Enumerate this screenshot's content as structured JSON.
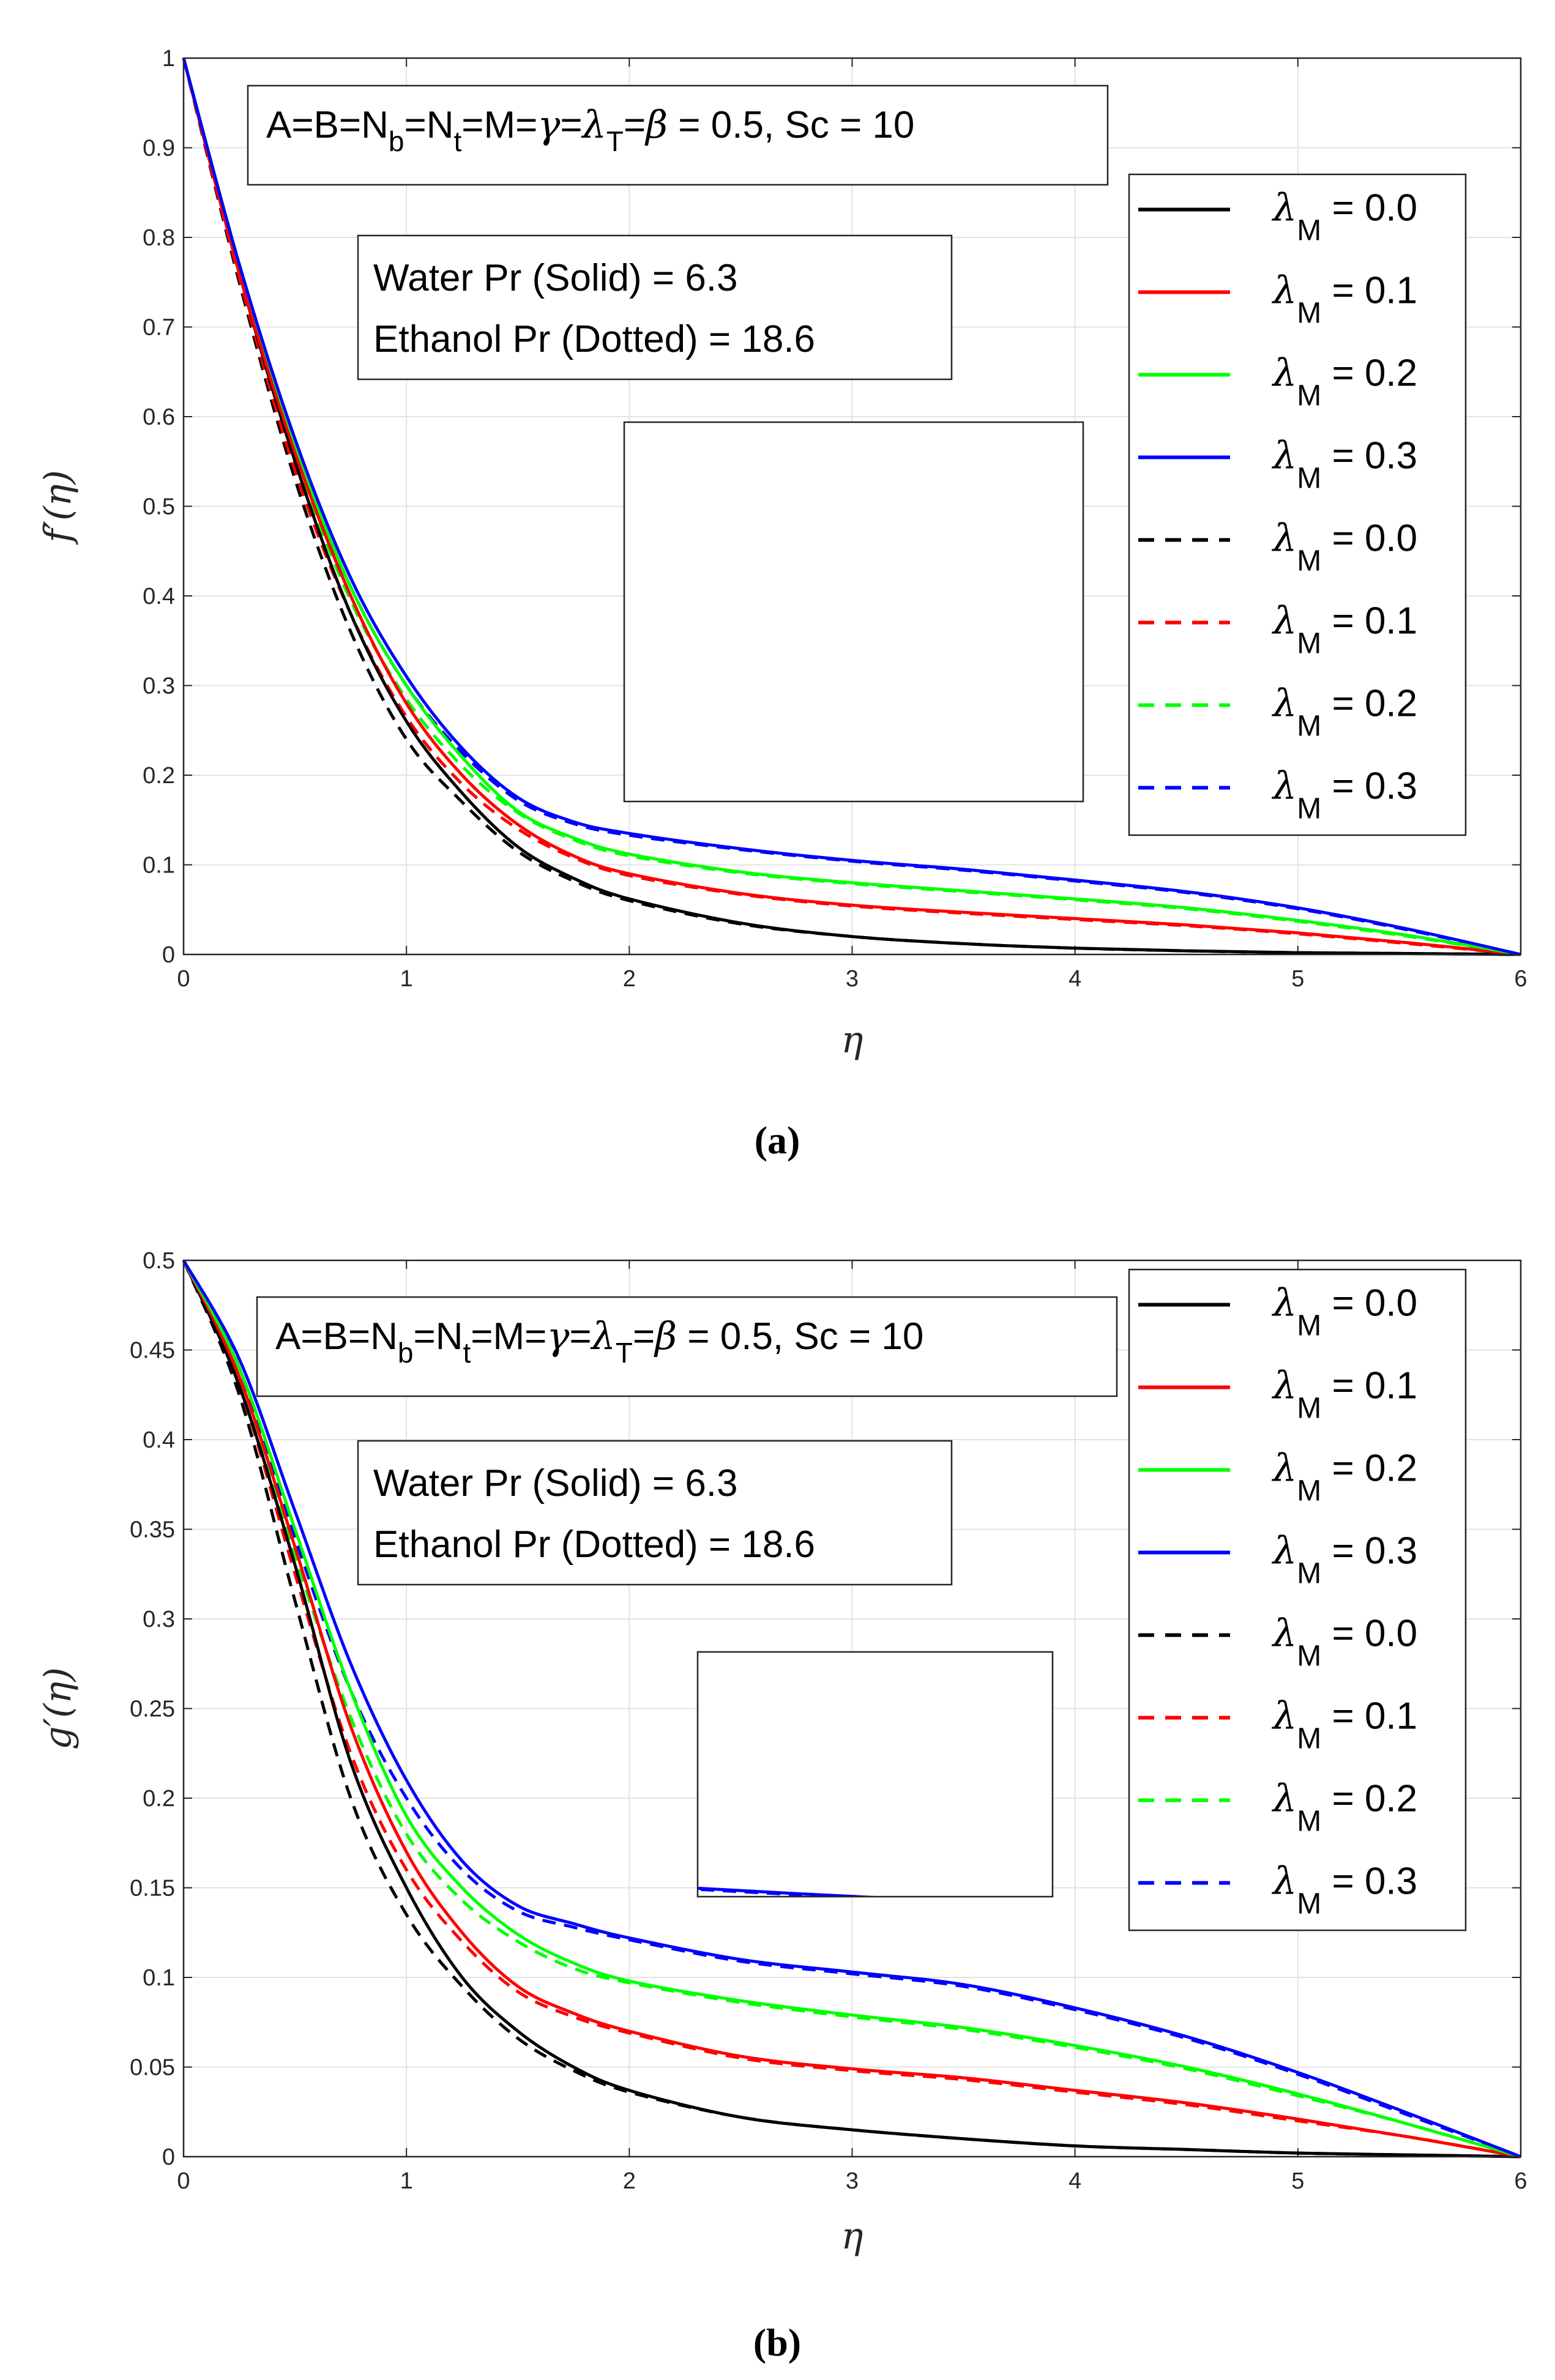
{
  "chart_data": [
    {
      "type": "line",
      "panel_label": "(a)",
      "xlabel": "η",
      "ylabel": "f′(η)",
      "xlim": [
        0,
        6
      ],
      "ylim": [
        0,
        1
      ],
      "xticks": [
        "0",
        "1",
        "2",
        "3",
        "4",
        "5",
        "6"
      ],
      "yticks": [
        "0",
        "0.1",
        "0.2",
        "0.3",
        "0.4",
        "0.5",
        "0.6",
        "0.7",
        "0.8",
        "0.9",
        "1"
      ],
      "grid": true,
      "param_box": {
        "prefix": "A=B=N",
        "sub1": "b",
        "mid1": "=N",
        "sub2": "t",
        "mid2": "=M=",
        "gamma": "γ",
        "eq1": "=",
        "lam": "λ",
        "sub3": "T",
        "eq2": "=",
        "beta": "β",
        "suffix": " = 0.5, Sc = 10"
      },
      "pr_box": {
        "line1": "Water Pr (Solid) = 6.3",
        "line2": "Ethanol Pr (Dotted) = 18.6"
      },
      "legend": [
        {
          "symbol": "λ",
          "sub": "M",
          "text": " = 0.0",
          "color": "#000000",
          "dash": false
        },
        {
          "symbol": "λ",
          "sub": "M",
          "text": " = 0.1",
          "color": "#ff0000",
          "dash": false
        },
        {
          "symbol": "λ",
          "sub": "M",
          "text": " = 0.2",
          "color": "#00ff00",
          "dash": false
        },
        {
          "symbol": "λ",
          "sub": "M",
          "text": " = 0.3",
          "color": "#0000ff",
          "dash": false
        },
        {
          "symbol": "λ",
          "sub": "M",
          "text": " = 0.0",
          "color": "#000000",
          "dash": true
        },
        {
          "symbol": "λ",
          "sub": "M",
          "text": " = 0.1",
          "color": "#ff0000",
          "dash": true
        },
        {
          "symbol": "λ",
          "sub": "M",
          "text": " = 0.2",
          "color": "#00ff00",
          "dash": true
        },
        {
          "symbol": "λ",
          "sub": "M",
          "text": " = 0.3",
          "color": "#0000ff",
          "dash": true
        }
      ],
      "x": [
        0,
        0.25,
        0.5,
        0.75,
        1,
        1.25,
        1.5,
        1.75,
        2,
        2.5,
        3,
        3.5,
        4,
        4.5,
        5,
        5.5,
        6
      ],
      "series": [
        {
          "name": "λM = 0.0 (Water)",
          "color": "#000000",
          "dash": false,
          "values": [
            1,
            0.76,
            0.55,
            0.38,
            0.26,
            0.18,
            0.12,
            0.085,
            0.062,
            0.035,
            0.02,
            0.012,
            0.007,
            0.004,
            0.002,
            0.001,
            0
          ]
        },
        {
          "name": "λM = 0.1 (Water)",
          "color": "#ff0000",
          "dash": false,
          "values": [
            1,
            0.76,
            0.56,
            0.4,
            0.28,
            0.2,
            0.145,
            0.11,
            0.09,
            0.068,
            0.055,
            0.047,
            0.04,
            0.033,
            0.024,
            0.013,
            0
          ]
        },
        {
          "name": "λM = 0.2 (Water)",
          "color": "#00ff00",
          "dash": false,
          "values": [
            1,
            0.77,
            0.57,
            0.41,
            0.3,
            0.22,
            0.16,
            0.13,
            0.112,
            0.092,
            0.08,
            0.071,
            0.062,
            0.052,
            0.038,
            0.021,
            0
          ]
        },
        {
          "name": "λM = 0.3 (Water)",
          "color": "#0000ff",
          "dash": false,
          "values": [
            1,
            0.77,
            0.575,
            0.42,
            0.31,
            0.23,
            0.175,
            0.148,
            0.135,
            0.118,
            0.105,
            0.095,
            0.083,
            0.07,
            0.052,
            0.028,
            0
          ]
        },
        {
          "name": "λM = 0.0 (Ethanol)",
          "color": "#000000",
          "dash": true,
          "values": [
            1,
            0.75,
            0.53,
            0.36,
            0.24,
            0.17,
            0.115,
            0.082,
            0.06,
            0.034,
            0.02,
            0.012,
            0.007,
            0.004,
            0.002,
            0.001,
            0
          ]
        },
        {
          "name": "λM = 0.1 (Ethanol)",
          "color": "#ff0000",
          "dash": true,
          "values": [
            1,
            0.755,
            0.54,
            0.38,
            0.265,
            0.19,
            0.14,
            0.108,
            0.088,
            0.067,
            0.054,
            0.046,
            0.039,
            0.032,
            0.023,
            0.012,
            0
          ]
        },
        {
          "name": "λM = 0.2 (Ethanol)",
          "color": "#00ff00",
          "dash": true,
          "values": [
            1,
            0.76,
            0.555,
            0.395,
            0.285,
            0.21,
            0.158,
            0.128,
            0.11,
            0.091,
            0.079,
            0.07,
            0.061,
            0.051,
            0.037,
            0.02,
            0
          ]
        },
        {
          "name": "λM = 0.3 (Ethanol)",
          "color": "#0000ff",
          "dash": true,
          "values": [
            1,
            0.765,
            0.565,
            0.41,
            0.3,
            0.225,
            0.172,
            0.146,
            0.133,
            0.117,
            0.104,
            0.094,
            0.082,
            0.069,
            0.051,
            0.027,
            0
          ]
        }
      ]
    },
    {
      "type": "line",
      "panel_label": "(b)",
      "xlabel": "η",
      "ylabel": "g′(η)",
      "xlim": [
        0,
        6
      ],
      "ylim": [
        0,
        0.5
      ],
      "xticks": [
        "0",
        "1",
        "2",
        "3",
        "4",
        "5",
        "6"
      ],
      "yticks": [
        "0",
        "0.05",
        "0.1",
        "0.15",
        "0.2",
        "0.25",
        "0.3",
        "0.35",
        "0.4",
        "0.45",
        "0.5"
      ],
      "grid": true,
      "param_box": {
        "prefix": "A=B=N",
        "sub1": "b",
        "mid1": "=N",
        "sub2": "t",
        "mid2": "=M=",
        "gamma": "γ",
        "eq1": "=",
        "lam": "λ",
        "sub3": "T",
        "eq2": "=",
        "beta": "β",
        "suffix": " = 0.5, Sc = 10"
      },
      "pr_box": {
        "line1": "Water Pr (Solid) = 6.3",
        "line2": "Ethanol Pr (Dotted) = 18.6"
      },
      "legend": [
        {
          "symbol": "λ",
          "sub": "M",
          "text": " = 0.0",
          "color": "#000000",
          "dash": false
        },
        {
          "symbol": "λ",
          "sub": "M",
          "text": " = 0.1",
          "color": "#ff0000",
          "dash": false
        },
        {
          "symbol": "λ",
          "sub": "M",
          "text": " = 0.2",
          "color": "#00ff00",
          "dash": false
        },
        {
          "symbol": "λ",
          "sub": "M",
          "text": " = 0.3",
          "color": "#0000ff",
          "dash": false
        },
        {
          "symbol": "λ",
          "sub": "M",
          "text": " = 0.0",
          "color": "#000000",
          "dash": true
        },
        {
          "symbol": "λ",
          "sub": "M",
          "text": " = 0.1",
          "color": "#ff0000",
          "dash": true
        },
        {
          "symbol": "λ",
          "sub": "M",
          "text": " = 0.2",
          "color": "#00ff00",
          "dash": true
        },
        {
          "symbol": "λ",
          "sub": "M",
          "text": " = 0.3",
          "color": "#0000ff",
          "dash": true
        }
      ],
      "x": [
        0,
        0.25,
        0.5,
        0.75,
        1,
        1.25,
        1.5,
        1.75,
        2,
        2.5,
        3,
        3.5,
        4,
        4.5,
        5,
        5.5,
        6
      ],
      "series": [
        {
          "name": "λM = 0.0 (Water)",
          "color": "#000000",
          "dash": false,
          "values": [
            0.5,
            0.43,
            0.33,
            0.22,
            0.15,
            0.1,
            0.07,
            0.05,
            0.037,
            0.022,
            0.015,
            0.01,
            0.006,
            0.004,
            0.002,
            0.001,
            0
          ]
        },
        {
          "name": "λM = 0.1 (Water)",
          "color": "#ff0000",
          "dash": false,
          "values": [
            0.5,
            0.435,
            0.34,
            0.24,
            0.17,
            0.125,
            0.095,
            0.08,
            0.07,
            0.056,
            0.049,
            0.044,
            0.037,
            0.03,
            0.021,
            0.011,
            0
          ]
        },
        {
          "name": "λM = 0.2 (Water)",
          "color": "#00ff00",
          "dash": false,
          "values": [
            0.5,
            0.44,
            0.35,
            0.26,
            0.19,
            0.15,
            0.124,
            0.108,
            0.098,
            0.087,
            0.079,
            0.072,
            0.062,
            0.05,
            0.035,
            0.018,
            0
          ]
        },
        {
          "name": "λM = 0.3 (Water)",
          "color": "#0000ff",
          "dash": false,
          "values": [
            0.5,
            0.445,
            0.36,
            0.275,
            0.21,
            0.165,
            0.14,
            0.13,
            0.122,
            0.11,
            0.103,
            0.096,
            0.083,
            0.067,
            0.047,
            0.024,
            0
          ]
        },
        {
          "name": "λM = 0.0 (Ethanol)",
          "color": "#000000",
          "dash": true,
          "values": [
            0.5,
            0.425,
            0.31,
            0.2,
            0.135,
            0.095,
            0.066,
            0.048,
            0.036,
            0.022,
            0.015,
            0.01,
            0.006,
            0.004,
            0.002,
            0.001,
            0
          ]
        },
        {
          "name": "λM = 0.1 (Ethanol)",
          "color": "#ff0000",
          "dash": true,
          "values": [
            0.5,
            0.43,
            0.325,
            0.225,
            0.16,
            0.12,
            0.092,
            0.078,
            0.069,
            0.055,
            0.048,
            0.043,
            0.036,
            0.029,
            0.02,
            0.011,
            0
          ]
        },
        {
          "name": "λM = 0.2 (Ethanol)",
          "color": "#00ff00",
          "dash": true,
          "values": [
            0.5,
            0.435,
            0.335,
            0.245,
            0.18,
            0.143,
            0.12,
            0.105,
            0.097,
            0.086,
            0.078,
            0.071,
            0.061,
            0.049,
            0.034,
            0.018,
            0
          ]
        },
        {
          "name": "λM = 0.3 (Ethanol)",
          "color": "#0000ff",
          "dash": true,
          "values": [
            0.5,
            0.44,
            0.345,
            0.26,
            0.2,
            0.16,
            0.137,
            0.128,
            0.121,
            0.109,
            0.102,
            0.095,
            0.082,
            0.066,
            0.046,
            0.023,
            0
          ]
        }
      ]
    }
  ]
}
